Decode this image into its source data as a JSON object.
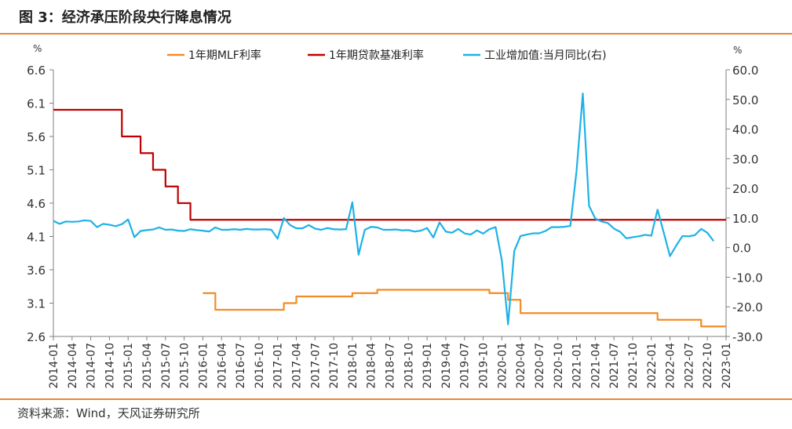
{
  "header": {
    "title": "图 3：经济承压阶段央行降息情况"
  },
  "footer": {
    "source": "资料来源：Wind，天风证券研究所"
  },
  "colors": {
    "mlf": "#f28c28",
    "lpr": "#c00000",
    "ip": "#1cb2e6",
    "accent_rule": "#e8873a",
    "axis": "#7f7f7f"
  },
  "chart_data": {
    "type": "line",
    "left_unit": "%",
    "right_unit": "%",
    "ylim_left": [
      2.6,
      6.6
    ],
    "ylim_right": [
      -30,
      60
    ],
    "y_ticks_left": [
      "6.6",
      "6.1",
      "5.6",
      "5.1",
      "4.6",
      "4.1",
      "3.6",
      "3.1",
      "2.6"
    ],
    "y_ticks_right": [
      "60.0",
      "50.0",
      "40.0",
      "30.0",
      "20.0",
      "10.0",
      "0.0",
      "-10.0",
      "-20.0",
      "-30.0"
    ],
    "x_tick_labels": [
      "2014-01",
      "2014-04",
      "2014-07",
      "2014-10",
      "2015-01",
      "2015-04",
      "2015-07",
      "2015-10",
      "2016-01",
      "2016-04",
      "2016-07",
      "2016-10",
      "2017-01",
      "2017-04",
      "2017-07",
      "2017-10",
      "2018-01",
      "2018-04",
      "2018-07",
      "2018-10",
      "2019-01",
      "2019-04",
      "2019-07",
      "2019-10",
      "2020-01",
      "2020-04",
      "2020-07",
      "2020-10",
      "2021-01",
      "2021-04",
      "2021-07",
      "2021-10",
      "2022-01",
      "2022-04",
      "2022-07",
      "2022-10",
      "2023-01"
    ],
    "legend_position": "top",
    "series": [
      {
        "name": "1年期MLF利率",
        "axis": "left",
        "color": "#f28c28",
        "step": true,
        "points": [
          [
            "2016-01",
            3.25
          ],
          [
            "2016-02",
            3.25
          ],
          [
            "2016-03",
            3.0
          ],
          [
            "2017-01",
            3.0
          ],
          [
            "2017-02",
            3.1
          ],
          [
            "2017-03",
            3.1
          ],
          [
            "2017-04",
            3.2
          ],
          [
            "2017-12",
            3.2
          ],
          [
            "2018-01",
            3.25
          ],
          [
            "2018-04",
            3.25
          ],
          [
            "2018-05",
            3.3
          ],
          [
            "2019-10",
            3.3
          ],
          [
            "2019-11",
            3.25
          ],
          [
            "2020-01",
            3.25
          ],
          [
            "2020-02",
            3.15
          ],
          [
            "2020-03",
            3.15
          ],
          [
            "2020-04",
            2.95
          ],
          [
            "2022-01",
            2.95
          ],
          [
            "2022-02",
            2.85
          ],
          [
            "2022-08",
            2.85
          ],
          [
            "2022-09",
            2.75
          ],
          [
            "2023-01",
            2.75
          ]
        ]
      },
      {
        "name": "1年期贷款基准利率",
        "axis": "left",
        "color": "#c00000",
        "step": true,
        "points": [
          [
            "2014-01",
            6.0
          ],
          [
            "2014-11",
            6.0
          ],
          [
            "2014-12",
            5.6
          ],
          [
            "2015-02",
            5.6
          ],
          [
            "2015-03",
            5.35
          ],
          [
            "2015-04",
            5.35
          ],
          [
            "2015-05",
            5.1
          ],
          [
            "2015-06",
            5.1
          ],
          [
            "2015-07",
            4.85
          ],
          [
            "2015-08",
            4.85
          ],
          [
            "2015-09",
            4.6
          ],
          [
            "2015-10",
            4.6
          ],
          [
            "2015-11",
            4.35
          ],
          [
            "2023-01",
            4.35
          ]
        ]
      },
      {
        "name": "工业增加值:当月同比(右)",
        "axis": "right",
        "color": "#1cb2e6",
        "step": false,
        "points": [
          [
            "2014-01",
            9.0
          ],
          [
            "2014-02",
            8.0
          ],
          [
            "2014-03",
            8.8
          ],
          [
            "2014-04",
            8.7
          ],
          [
            "2014-05",
            8.8
          ],
          [
            "2014-06",
            9.2
          ],
          [
            "2014-07",
            9.0
          ],
          [
            "2014-08",
            6.9
          ],
          [
            "2014-09",
            8.0
          ],
          [
            "2014-10",
            7.7
          ],
          [
            "2014-11",
            7.2
          ],
          [
            "2014-12",
            7.9
          ],
          [
            "2015-01",
            9.5
          ],
          [
            "2015-02",
            3.5
          ],
          [
            "2015-03",
            5.6
          ],
          [
            "2015-04",
            5.9
          ],
          [
            "2015-05",
            6.1
          ],
          [
            "2015-06",
            6.8
          ],
          [
            "2015-07",
            6.0
          ],
          [
            "2015-08",
            6.1
          ],
          [
            "2015-09",
            5.7
          ],
          [
            "2015-10",
            5.6
          ],
          [
            "2015-11",
            6.2
          ],
          [
            "2015-12",
            5.9
          ],
          [
            "2016-01",
            5.7
          ],
          [
            "2016-02",
            5.4
          ],
          [
            "2016-03",
            6.8
          ],
          [
            "2016-04",
            6.0
          ],
          [
            "2016-05",
            6.0
          ],
          [
            "2016-06",
            6.2
          ],
          [
            "2016-07",
            6.0
          ],
          [
            "2016-08",
            6.3
          ],
          [
            "2016-09",
            6.1
          ],
          [
            "2016-10",
            6.1
          ],
          [
            "2016-11",
            6.2
          ],
          [
            "2016-12",
            6.0
          ],
          [
            "2017-01",
            3.0
          ],
          [
            "2017-02",
            10.0
          ],
          [
            "2017-03",
            7.6
          ],
          [
            "2017-04",
            6.5
          ],
          [
            "2017-05",
            6.5
          ],
          [
            "2017-06",
            7.6
          ],
          [
            "2017-07",
            6.4
          ],
          [
            "2017-08",
            6.0
          ],
          [
            "2017-09",
            6.6
          ],
          [
            "2017-10",
            6.2
          ],
          [
            "2017-11",
            6.1
          ],
          [
            "2017-12",
            6.2
          ],
          [
            "2018-01",
            15.3
          ],
          [
            "2018-02",
            -2.4
          ],
          [
            "2018-03",
            6.0
          ],
          [
            "2018-04",
            7.0
          ],
          [
            "2018-05",
            6.8
          ],
          [
            "2018-06",
            6.0
          ],
          [
            "2018-07",
            6.0
          ],
          [
            "2018-08",
            6.1
          ],
          [
            "2018-09",
            5.8
          ],
          [
            "2018-10",
            5.9
          ],
          [
            "2018-11",
            5.4
          ],
          [
            "2018-12",
            5.7
          ],
          [
            "2019-01",
            6.6
          ],
          [
            "2019-02",
            3.4
          ],
          [
            "2019-03",
            8.5
          ],
          [
            "2019-04",
            5.4
          ],
          [
            "2019-05",
            5.0
          ],
          [
            "2019-06",
            6.3
          ],
          [
            "2019-07",
            4.8
          ],
          [
            "2019-08",
            4.4
          ],
          [
            "2019-09",
            5.8
          ],
          [
            "2019-10",
            4.7
          ],
          [
            "2019-11",
            6.2
          ],
          [
            "2019-12",
            6.9
          ],
          [
            "2020-01",
            -4.3
          ],
          [
            "2020-02",
            -25.9
          ],
          [
            "2020-03",
            -1.1
          ],
          [
            "2020-04",
            3.9
          ],
          [
            "2020-05",
            4.4
          ],
          [
            "2020-06",
            4.8
          ],
          [
            "2020-07",
            4.8
          ],
          [
            "2020-08",
            5.6
          ],
          [
            "2020-09",
            6.9
          ],
          [
            "2020-10",
            6.9
          ],
          [
            "2020-11",
            7.0
          ],
          [
            "2020-12",
            7.3
          ],
          [
            "2021-01",
            26.0
          ],
          [
            "2021-02",
            52.0
          ],
          [
            "2021-03",
            14.1
          ],
          [
            "2021-04",
            9.8
          ],
          [
            "2021-05",
            8.8
          ],
          [
            "2021-06",
            8.3
          ],
          [
            "2021-07",
            6.4
          ],
          [
            "2021-08",
            5.3
          ],
          [
            "2021-09",
            3.1
          ],
          [
            "2021-10",
            3.5
          ],
          [
            "2021-11",
            3.8
          ],
          [
            "2021-12",
            4.3
          ],
          [
            "2022-01",
            4.0
          ],
          [
            "2022-02",
            12.8
          ],
          [
            "2022-03",
            5.0
          ],
          [
            "2022-04",
            -2.9
          ],
          [
            "2022-05",
            0.7
          ],
          [
            "2022-06",
            3.9
          ],
          [
            "2022-07",
            3.8
          ],
          [
            "2022-08",
            4.2
          ],
          [
            "2022-09",
            6.3
          ],
          [
            "2022-10",
            5.0
          ],
          [
            "2022-11",
            2.2
          ]
        ]
      }
    ]
  }
}
